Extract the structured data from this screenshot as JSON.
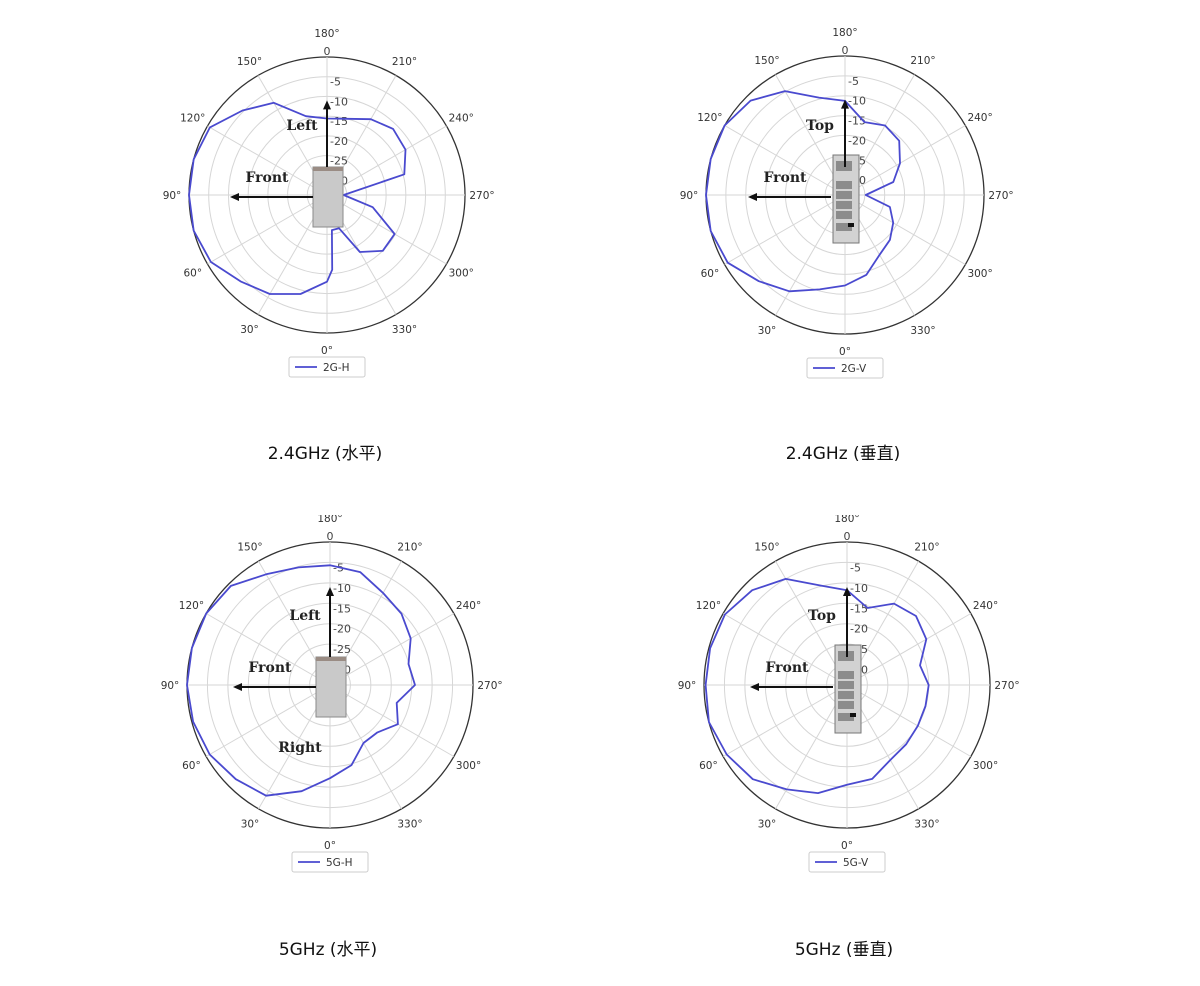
{
  "chart_data": [
    {
      "type": "polar-line",
      "caption": "2.4GHz (水平)",
      "legend": {
        "entries": [
          "2G-H"
        ],
        "placement": "bottom"
      },
      "radial_ticks": [
        "0",
        "-5",
        "-10",
        "-15",
        "-20",
        "-25",
        "-30"
      ],
      "radial_range": [
        -35,
        0
      ],
      "angle_ticks": [
        "0°",
        "30°",
        "60°",
        "90°",
        "120°",
        "150°",
        "180°",
        "210°",
        "240°",
        "270°",
        "300°",
        "330°"
      ],
      "angle_zero": "bottom",
      "angle_direction": "clockwise",
      "grid": true,
      "annotations": {
        "up": "Left",
        "left": "Front",
        "down": ""
      },
      "device": "side",
      "series": [
        {
          "name": "2G-H",
          "color": "#4a4acf",
          "theta": [
            0,
            15,
            30,
            45,
            60,
            75,
            90,
            105,
            120,
            135,
            150,
            165,
            180,
            195,
            210,
            225,
            240,
            255,
            270,
            285,
            300,
            315,
            330,
            340,
            352,
            356
          ],
          "r": [
            -13,
            -9,
            -6,
            -4,
            -1,
            0,
            0,
            0,
            -0.7,
            -4.7,
            -8,
            -14.3,
            -15.6,
            -15,
            -12.8,
            -11.3,
            -12,
            -14.7,
            -30.8,
            -23,
            -15.2,
            -15,
            -18.3,
            -26,
            -26,
            -16
          ]
        }
      ]
    },
    {
      "type": "polar-line",
      "caption": "2.4GHz (垂直)",
      "legend": {
        "entries": [
          "2G-V"
        ],
        "placement": "bottom"
      },
      "radial_ticks": [
        "0",
        "-5",
        "-10",
        "-15",
        "-20",
        "-25",
        "-30"
      ],
      "radial_range": [
        -35,
        0
      ],
      "angle_ticks": [
        "0°",
        "30°",
        "60°",
        "90°",
        "120°",
        "150°",
        "180°",
        "210°",
        "240°",
        "270°",
        "300°",
        "330°"
      ],
      "angle_zero": "bottom",
      "angle_direction": "clockwise",
      "grid": true,
      "annotations": {
        "up": "Top",
        "left": "Front",
        "down": ""
      },
      "device": "front",
      "series": [
        {
          "name": "2G-V",
          "color": "#4a4acf",
          "theta": [
            0,
            15,
            30,
            45,
            60,
            75,
            90,
            105,
            120,
            135,
            150,
            165,
            180,
            195,
            210,
            225,
            240,
            255,
            270,
            285,
            300,
            315,
            330,
            345
          ],
          "r": [
            -12.2,
            -10.4,
            -7,
            -4.3,
            -0.9,
            0,
            0,
            0,
            0,
            -1.4,
            -4.8,
            -9.6,
            -11.3,
            -16,
            -14.8,
            -15.7,
            -19,
            -22.4,
            -29.8,
            -23.3,
            -21,
            -19,
            -17.6,
            -14.2
          ]
        }
      ]
    },
    {
      "type": "polar-line",
      "caption": "5GHz (水平)",
      "legend": {
        "entries": [
          "5G-H"
        ],
        "placement": "bottom"
      },
      "radial_ticks": [
        "0",
        "-5",
        "-10",
        "-15",
        "-20",
        "-25",
        "-30"
      ],
      "radial_range": [
        -35,
        0
      ],
      "angle_ticks": [
        "0°",
        "30°",
        "60°",
        "90°",
        "120°",
        "150°",
        "180°",
        "210°",
        "240°",
        "270°",
        "300°",
        "330°"
      ],
      "angle_zero": "bottom",
      "angle_direction": "clockwise",
      "grid": true,
      "annotations": {
        "up": "Left",
        "left": "Front",
        "down": "Right"
      },
      "device": "side",
      "series": [
        {
          "name": "5G-H",
          "color": "#4a4acf",
          "theta": [
            0,
            15,
            30,
            45,
            60,
            75,
            90,
            105,
            120,
            135,
            150,
            165,
            180,
            195,
            210,
            225,
            240,
            255,
            270,
            285,
            300,
            315,
            330,
            345
          ],
          "r": [
            -12.2,
            -8.1,
            -3.7,
            -2.4,
            -1,
            -0.3,
            0,
            0,
            0,
            -0.7,
            -3.7,
            -5.2,
            -5.7,
            -6.4,
            -9,
            -10.3,
            -12.2,
            -15.1,
            -14.2,
            -18.1,
            -15.8,
            -18.6,
            -18.6,
            -14.7
          ]
        }
      ]
    },
    {
      "type": "polar-line",
      "caption": "5GHz (垂直)",
      "legend": {
        "entries": [
          "5G-V"
        ],
        "placement": "bottom"
      },
      "radial_ticks": [
        "0",
        "-5",
        "-10",
        "-15",
        "-20",
        "-25",
        "-30"
      ],
      "radial_range": [
        -35,
        0
      ],
      "angle_ticks": [
        "0°",
        "30°",
        "60°",
        "90°",
        "120°",
        "150°",
        "180°",
        "210°",
        "240°",
        "270°",
        "300°",
        "330°"
      ],
      "angle_zero": "bottom",
      "angle_direction": "clockwise",
      "grid": true,
      "annotations": {
        "up": "Top",
        "left": "Front",
        "down": ""
      },
      "device": "front",
      "series": [
        {
          "name": "5G-V",
          "color": "#4a4acf",
          "theta": [
            0,
            15,
            30,
            45,
            60,
            75,
            90,
            105,
            120,
            135,
            150,
            165,
            180,
            195,
            210,
            225,
            240,
            255,
            270,
            285,
            300,
            315,
            330,
            345
          ],
          "r": [
            -10.6,
            -7.6,
            -5.5,
            -2.4,
            -1,
            0,
            -0.4,
            -0.3,
            -0.5,
            -2.2,
            -5,
            -9.8,
            -11.8,
            -15.5,
            -12,
            -11.1,
            -12.6,
            -16.5,
            -15,
            -15.1,
            -15,
            -14.5,
            -13.8,
            -11.2
          ]
        }
      ]
    }
  ]
}
